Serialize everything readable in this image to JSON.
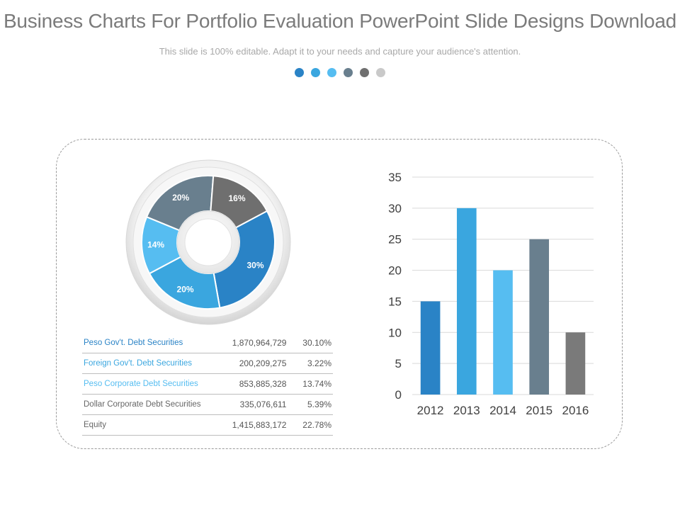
{
  "slide": {
    "title": "Business Charts For Portfolio Evaluation PowerPoint Slide Designs Download",
    "subtitle": "This slide is 100% editable. Adapt it to your needs and capture your audience's attention.",
    "dot_colors": [
      "#2a83c6",
      "#3aa6df",
      "#56bdf1",
      "#697f8e",
      "#6f6f6f",
      "#c9c9c9"
    ]
  },
  "chart_data": [
    {
      "type": "pie",
      "variant": "donut",
      "title": "",
      "slices": [
        {
          "label": "30%",
          "value": 30,
          "color": "#2a83c6"
        },
        {
          "label": "20%",
          "value": 20,
          "color": "#3aa6df"
        },
        {
          "label": "14%",
          "value": 14,
          "color": "#56bdf1"
        },
        {
          "label": "20%",
          "value": 20,
          "color": "#697f8e"
        },
        {
          "label": "16%",
          "value": 16,
          "color": "#6f6f6f"
        }
      ]
    },
    {
      "type": "bar",
      "title": "",
      "xlabel": "",
      "ylabel": "",
      "categories": [
        "2012",
        "2013",
        "2014",
        "2015",
        "2016"
      ],
      "values": [
        15,
        30,
        20,
        25,
        10
      ],
      "colors": [
        "#2a83c6",
        "#3aa6df",
        "#56bdf1",
        "#697f8e",
        "#7a7a7a"
      ],
      "ylim": [
        0,
        35
      ],
      "yticks": [
        0,
        5,
        10,
        15,
        20,
        25,
        30,
        35
      ],
      "grid": true
    }
  ],
  "table": {
    "rows": [
      {
        "name": "Peso Gov't. Debt Securities",
        "amount": "1,870,964,729",
        "percent": "30.10%",
        "color": "#2a83c6"
      },
      {
        "name": "Foreign Gov't. Debt Securities",
        "amount": "200,209,275",
        "percent": "3.22%",
        "color": "#3aa6df"
      },
      {
        "name": "Peso Corporate Debt Securities",
        "amount": "853,885,328",
        "percent": "13.74%",
        "color": "#56bdf1"
      },
      {
        "name": "Dollar Corporate Debt Securities",
        "amount": "335,076,611",
        "percent": "5.39%",
        "color": "#666666"
      },
      {
        "name": "Equity",
        "amount": "1,415,883,172",
        "percent": "22.78%",
        "color": "#666666"
      }
    ]
  }
}
